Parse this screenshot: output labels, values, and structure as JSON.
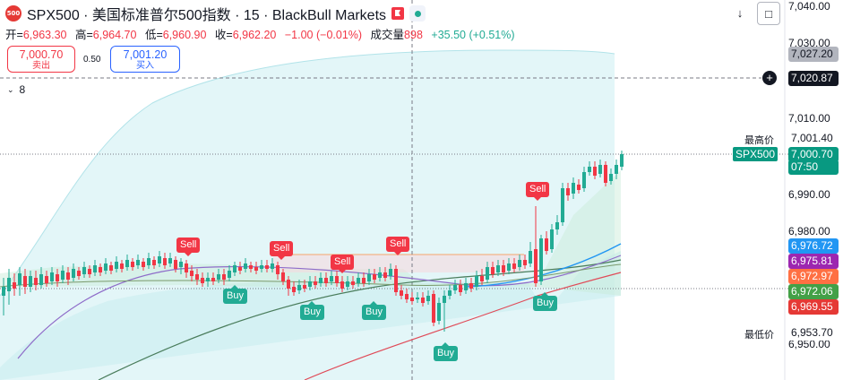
{
  "header": {
    "logo_text": "500",
    "title": "SPX500 · 美国标准普尔500指数 · 15 · BlackBull Markets"
  },
  "ohlc": {
    "open_label": "开=",
    "open": "6,963.30",
    "high_label": "高=",
    "high": "6,964.70",
    "low_label": "低=",
    "low": "6,960.90",
    "close_label": "收=",
    "close": "6,962.20",
    "change": "−1.00 (−0.01%)",
    "volume_label": "成交量",
    "volume": "898",
    "volume_change": "+35.50 (+0.51%)"
  },
  "trade": {
    "sell_price": "7,000.70",
    "sell_label": "卖出",
    "spread": "0.50",
    "buy_price": "7,001.20",
    "buy_label": "买入"
  },
  "indicator_collapse": {
    "count": "8"
  },
  "axis": {
    "ticks": [
      "7,040.00",
      "7,030.00",
      "7,010.00",
      "6,990.00",
      "6,980.00",
      "6,950.00"
    ],
    "crosshair_price": "7,020.87",
    "price_labels": [
      {
        "text": "7,027.20",
        "color": "#b2b5be",
        "fg": "#131722"
      },
      {
        "text": "7,001.40",
        "color": "#ffffff",
        "fg": "#131722"
      },
      {
        "text": "7,000.70",
        "color": "#089981",
        "fg": "#ffffff"
      },
      {
        "text": "07:50",
        "color": "#089981",
        "fg": "#ffffff"
      },
      {
        "text": "6,976.72",
        "color": "#2196f3",
        "fg": "#ffffff"
      },
      {
        "text": "6,975.81",
        "color": "#9c27b0",
        "fg": "#ffffff"
      },
      {
        "text": "6,972.97",
        "color": "#ff7043",
        "fg": "#ffffff"
      },
      {
        "text": "6,972.06",
        "color": "#43a047",
        "fg": "#ffffff"
      },
      {
        "text": "6,969.55",
        "color": "#e53935",
        "fg": "#ffffff"
      },
      {
        "text": "6,953.70",
        "color": "#ffffff",
        "fg": "#131722"
      }
    ],
    "high_tag": "最高价",
    "low_tag": "最低价",
    "symbol_tag": "SPX500"
  },
  "signals": {
    "sell": [
      "Sell",
      "Sell",
      "Sell",
      "Sell",
      "Sell"
    ],
    "buy": [
      "Buy",
      "Buy",
      "Buy",
      "Buy",
      "Buy"
    ]
  },
  "colors": {
    "up": "#22ab94",
    "down": "#f23645"
  },
  "icons": [
    "logo-icon",
    "flag-icon",
    "status-dot-icon",
    "download-icon",
    "fullscreen-icon",
    "plus-icon",
    "chevron-down-icon"
  ]
}
